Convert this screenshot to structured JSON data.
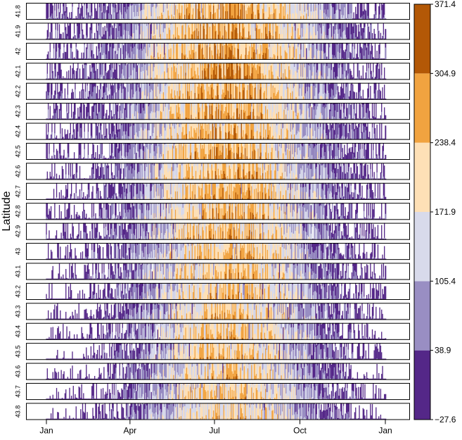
{
  "chart_data": {
    "type": "heatmap",
    "title": "",
    "xlabel": "",
    "ylabel": "Latitude",
    "x_tick_labels": [
      "Jan",
      "Apr",
      "Jul",
      "Oct",
      "Jan"
    ],
    "x_tick_days": [
      0,
      90,
      181,
      273,
      365
    ],
    "x_range_days": [
      0,
      365
    ],
    "panels": [
      "41.8",
      "41.9",
      "42",
      "42.1",
      "42.2",
      "42.3",
      "42.4",
      "42.5",
      "42.6",
      "42.7",
      "42.8",
      "42.9",
      "43",
      "43.1",
      "43.2",
      "43.3",
      "43.4",
      "43.5",
      "43.6",
      "43.7",
      "43.8"
    ],
    "legend": {
      "placement": "right",
      "breaks": [
        -27.6,
        38.9,
        105.4,
        171.9,
        238.4,
        304.9,
        371.4
      ],
      "break_labels": [
        "−27.6",
        "38.9",
        "105.4",
        "171.9",
        "238.4",
        "304.9",
        "371.4"
      ],
      "colors": [
        "#542788",
        "#998ec3",
        "#d8daeb",
        "#fee0b6",
        "#f1a340",
        "#b35806"
      ]
    },
    "colors_by_level": [
      "#542788",
      "#998ec3",
      "#d8daeb",
      "#fee0b6",
      "#f1a340",
      "#b35806"
    ],
    "grid": false
  }
}
